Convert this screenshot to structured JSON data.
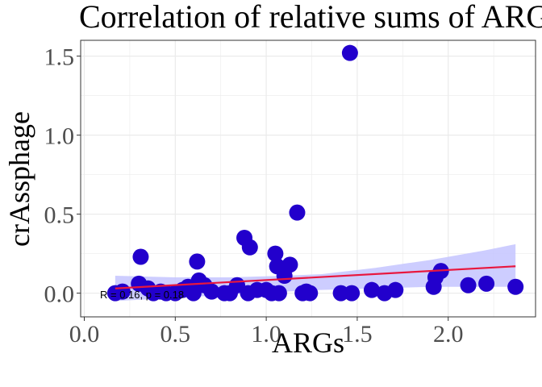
{
  "chart_data": {
    "type": "scatter",
    "title": "Correlation of relative sums of ARGs",
    "xlabel": "ARGs",
    "ylabel": "crAssphage",
    "xlim": [
      -0.02,
      2.48
    ],
    "ylim": [
      -0.15,
      1.6
    ],
    "x_ticks": [
      "0.0",
      "0.5",
      "1.0",
      "1.5",
      "2.0"
    ],
    "y_ticks": [
      "0.0",
      "0.5",
      "1.0",
      "1.5"
    ],
    "grid": true,
    "annotation": "R = 0.16, p = 0.18",
    "colors": {
      "points": "#2200cc",
      "fit_line": "#e8173e",
      "ci_band": "#c4c4ff",
      "panel_border": "#333333",
      "grid": "#ebebeb"
    },
    "fit_line": {
      "x": [
        0.17,
        2.37
      ],
      "y": [
        0.03,
        0.17
      ]
    },
    "ci_band": {
      "x": [
        0.17,
        0.5,
        0.8,
        1.1,
        1.3,
        1.6,
        1.9,
        2.2,
        2.37
      ],
      "upper": [
        0.11,
        0.1,
        0.1,
        0.11,
        0.12,
        0.16,
        0.21,
        0.27,
        0.31
      ],
      "lower": [
        -0.05,
        -0.03,
        -0.01,
        0.01,
        0.02,
        0.03,
        0.04,
        0.04,
        0.04
      ]
    },
    "points": [
      {
        "x": 0.17,
        "y": 0.0
      },
      {
        "x": 0.21,
        "y": 0.01
      },
      {
        "x": 0.3,
        "y": 0.06
      },
      {
        "x": 0.31,
        "y": 0.23
      },
      {
        "x": 0.35,
        "y": 0.03
      },
      {
        "x": 0.38,
        "y": 0.0
      },
      {
        "x": 0.42,
        "y": 0.01
      },
      {
        "x": 0.45,
        "y": 0.0
      },
      {
        "x": 0.5,
        "y": 0.0
      },
      {
        "x": 0.54,
        "y": 0.02
      },
      {
        "x": 0.57,
        "y": 0.04
      },
      {
        "x": 0.6,
        "y": 0.0
      },
      {
        "x": 0.62,
        "y": 0.2
      },
      {
        "x": 0.63,
        "y": 0.08
      },
      {
        "x": 0.66,
        "y": 0.05
      },
      {
        "x": 0.7,
        "y": 0.01
      },
      {
        "x": 0.77,
        "y": 0.0
      },
      {
        "x": 0.8,
        "y": 0.0
      },
      {
        "x": 0.84,
        "y": 0.05
      },
      {
        "x": 0.88,
        "y": 0.35
      },
      {
        "x": 0.9,
        "y": 0.0
      },
      {
        "x": 0.91,
        "y": 0.29
      },
      {
        "x": 0.95,
        "y": 0.02
      },
      {
        "x": 1.0,
        "y": 0.02
      },
      {
        "x": 1.03,
        "y": 0.0
      },
      {
        "x": 1.05,
        "y": 0.25
      },
      {
        "x": 1.06,
        "y": 0.17
      },
      {
        "x": 1.07,
        "y": 0.0
      },
      {
        "x": 1.1,
        "y": 0.11
      },
      {
        "x": 1.13,
        "y": 0.18
      },
      {
        "x": 1.17,
        "y": 0.51
      },
      {
        "x": 1.2,
        "y": 0.0
      },
      {
        "x": 1.22,
        "y": 0.01
      },
      {
        "x": 1.24,
        "y": 0.0
      },
      {
        "x": 1.41,
        "y": 0.0
      },
      {
        "x": 1.46,
        "y": 1.52
      },
      {
        "x": 1.47,
        "y": 0.0
      },
      {
        "x": 1.58,
        "y": 0.02
      },
      {
        "x": 1.65,
        "y": 0.0
      },
      {
        "x": 1.71,
        "y": 0.02
      },
      {
        "x": 1.92,
        "y": 0.04
      },
      {
        "x": 1.93,
        "y": 0.1
      },
      {
        "x": 1.96,
        "y": 0.14
      },
      {
        "x": 2.11,
        "y": 0.05
      },
      {
        "x": 2.21,
        "y": 0.06
      },
      {
        "x": 2.37,
        "y": 0.04
      }
    ]
  }
}
